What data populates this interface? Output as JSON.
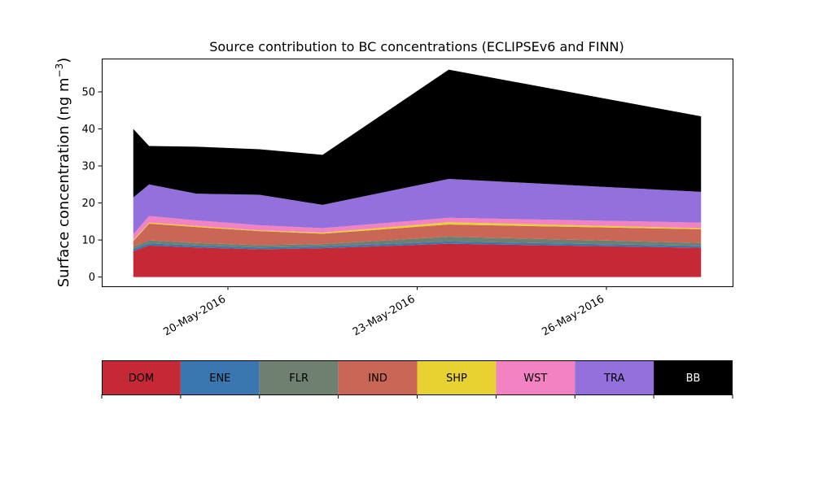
{
  "chart_data": {
    "type": "area",
    "stacked": true,
    "title": "Source contribution to BC concentrations (ECLIPSEv6 and FINN)",
    "ylabel_main": "Surface concentration (ng m",
    "ylabel_sup": "−3",
    "ylabel_end": ")",
    "xlabel": "",
    "x": [
      "2016-05-18T12:00",
      "2016-05-18T18:00",
      "2016-05-19T12:00",
      "2016-05-20T12:00",
      "2016-05-21T12:00",
      "2016-05-23T12:00",
      "2016-05-27T12:00"
    ],
    "x_ticks": [
      {
        "date": "2016-05-20",
        "label": "20-May-2016"
      },
      {
        "date": "2016-05-23",
        "label": "23-May-2016"
      },
      {
        "date": "2016-05-26",
        "label": "26-May-2016"
      }
    ],
    "xlim": [
      "2016-05-18T00:00",
      "2016-05-28T00:00"
    ],
    "ylim": [
      -2.5,
      59
    ],
    "y_ticks": [
      0,
      10,
      20,
      30,
      40,
      50
    ],
    "series": [
      {
        "name": "DOM",
        "color": "#c62936",
        "values": [
          7.0,
          8.5,
          8.0,
          7.5,
          7.8,
          9.0,
          7.9
        ]
      },
      {
        "name": "ENE",
        "color": "#3a77b0",
        "values": [
          0.6,
          0.6,
          0.5,
          0.5,
          0.5,
          0.6,
          0.5
        ]
      },
      {
        "name": "FLR",
        "color": "#6e8070",
        "values": [
          0.6,
          0.8,
          0.7,
          0.6,
          0.6,
          1.3,
          0.8
        ]
      },
      {
        "name": "IND",
        "color": "#c96655",
        "values": [
          1.5,
          4.5,
          4.3,
          3.8,
          2.8,
          3.3,
          3.7
        ]
      },
      {
        "name": "SHP",
        "color": "#e8d231",
        "values": [
          0.3,
          0.3,
          0.3,
          0.2,
          0.3,
          0.6,
          0.3
        ]
      },
      {
        "name": "WST",
        "color": "#f282c2",
        "values": [
          1.5,
          1.8,
          1.5,
          1.4,
          1.2,
          1.2,
          1.5
        ]
      },
      {
        "name": "TRA",
        "color": "#9370db",
        "values": [
          10.0,
          8.5,
          7.2,
          8.2,
          6.3,
          10.5,
          8.3
        ]
      },
      {
        "name": "BB",
        "color": "#000000",
        "text_color": "#ffffff",
        "values": [
          18.5,
          10.4,
          12.7,
          12.3,
          13.5,
          29.5,
          20.4
        ]
      }
    ]
  }
}
